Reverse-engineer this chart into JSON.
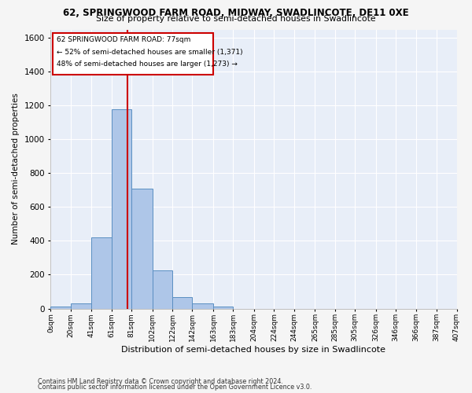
{
  "title_line1": "62, SPRINGWOOD FARM ROAD, MIDWAY, SWADLINCOTE, DE11 0XE",
  "title_line2": "Size of property relative to semi-detached houses in Swadlincote",
  "xlabel": "Distribution of semi-detached houses by size in Swadlincote",
  "ylabel": "Number of semi-detached properties",
  "footnote1": "Contains HM Land Registry data © Crown copyright and database right 2024.",
  "footnote2": "Contains public sector information licensed under the Open Government Licence v3.0.",
  "annotation_line1": "62 SPRINGWOOD FARM ROAD: 77sqm",
  "annotation_line2": "← 52% of semi-detached houses are smaller (1,371)",
  "annotation_line3": "48% of semi-detached houses are larger (1,273) →",
  "bin_edges": [
    0,
    20,
    41,
    61,
    81,
    102,
    122,
    142,
    163,
    183,
    204,
    224,
    244,
    265,
    285,
    305,
    326,
    346,
    366,
    387,
    407
  ],
  "bar_heights": [
    12,
    28,
    420,
    1180,
    710,
    225,
    68,
    32,
    14,
    0,
    0,
    0,
    0,
    0,
    0,
    0,
    0,
    0,
    0,
    0
  ],
  "bar_color": "#aec6e8",
  "bar_edge_color": "#5a8fc2",
  "red_line_x": 77,
  "ylim": [
    0,
    1650
  ],
  "yticks": [
    0,
    200,
    400,
    600,
    800,
    1000,
    1200,
    1400,
    1600
  ],
  "background_color": "#e8eef8",
  "grid_color": "#ffffff",
  "annotation_box_color": "#ffffff",
  "annotation_box_edge": "#cc0000",
  "tick_labels": [
    "0sqm",
    "20sqm",
    "41sqm",
    "61sqm",
    "81sqm",
    "102sqm",
    "122sqm",
    "142sqm",
    "163sqm",
    "183sqm",
    "204sqm",
    "224sqm",
    "244sqm",
    "265sqm",
    "285sqm",
    "305sqm",
    "326sqm",
    "346sqm",
    "366sqm",
    "387sqm",
    "407sqm"
  ]
}
